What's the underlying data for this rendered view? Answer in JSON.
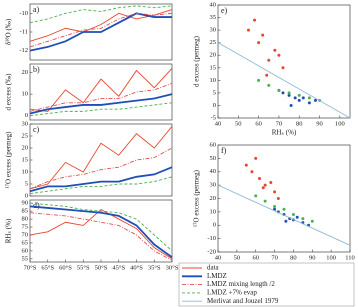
{
  "chart_data": [
    {
      "type": "line",
      "title": "a)",
      "ylabel": "δ¹⁸O (‰)",
      "x": [
        -70,
        -65,
        -60,
        -55,
        -50,
        -45,
        -40,
        -35,
        -30
      ],
      "xlim": [
        -70,
        -30
      ],
      "ylim": [
        -12.5,
        -9.5
      ],
      "yticks": [
        -12,
        -11,
        -10
      ],
      "series": [
        {
          "name": "data",
          "color": "#e8452c",
          "style": "solid",
          "values": [
            -11.5,
            -11.2,
            -10.8,
            -11,
            -10.6,
            -10,
            -10.3,
            -10.1,
            -9.8
          ]
        },
        {
          "name": "LMDZ",
          "color": "#1f4fb4",
          "style": "thick",
          "values": [
            -12,
            -11.8,
            -11.5,
            -11,
            -11,
            -10.5,
            -10,
            -10.2,
            -10.2
          ]
        },
        {
          "name": "LMDZ mixing length /2",
          "color": "#e05050",
          "style": "dashdot",
          "values": [
            -11.8,
            -11.5,
            -11.2,
            -10.9,
            -10.8,
            -10.3,
            -10,
            -10.1,
            -10
          ]
        },
        {
          "name": "LMDZ +7% evap",
          "color": "#4caf50",
          "style": "dashed",
          "values": [
            -10.5,
            -10.3,
            -10,
            -9.8,
            -9.9,
            -9.7,
            -9.6,
            -9.7,
            -9.6
          ]
        }
      ]
    },
    {
      "type": "line",
      "title": "b)",
      "ylabel": "d excess (‰)",
      "x": [
        -70,
        -65,
        -60,
        -55,
        -50,
        -45,
        -40,
        -35,
        -30
      ],
      "xlim": [
        -70,
        -30
      ],
      "ylim": [
        -2,
        24
      ],
      "yticks": [
        0,
        10,
        20
      ],
      "series": [
        {
          "name": "data",
          "color": "#e8452c",
          "style": "solid",
          "values": [
            3,
            2,
            12,
            6,
            17,
            9,
            21,
            13,
            22
          ]
        },
        {
          "name": "LMDZ",
          "color": "#1f4fb4",
          "style": "thick",
          "values": [
            1,
            3,
            4,
            5,
            5,
            6,
            7,
            8,
            10
          ]
        },
        {
          "name": "LMDZ mixing length /2",
          "color": "#e05050",
          "style": "dashdot",
          "values": [
            2,
            4,
            6,
            6,
            8,
            8,
            11,
            12,
            15
          ]
        },
        {
          "name": "LMDZ +7% evap",
          "color": "#4caf50",
          "style": "dashed",
          "values": [
            0,
            1,
            2,
            2,
            3,
            3,
            4,
            5,
            6
          ]
        }
      ]
    },
    {
      "type": "line",
      "title": "c)",
      "ylabel": "¹⁷O excess (permeg)",
      "x": [
        -70,
        -65,
        -60,
        -55,
        -50,
        -45,
        -40,
        -35,
        -30
      ],
      "xlim": [
        -70,
        -30
      ],
      "ylim": [
        0,
        30
      ],
      "yticks": [
        0,
        5,
        10,
        15,
        20,
        25,
        30
      ],
      "series": [
        {
          "name": "data",
          "color": "#e8452c",
          "style": "solid",
          "values": [
            3,
            5,
            14,
            10,
            22,
            17,
            26,
            20,
            29
          ]
        },
        {
          "name": "LMDZ",
          "color": "#1f4fb4",
          "style": "thick",
          "values": [
            2,
            4,
            4,
            5,
            6,
            6,
            8,
            9,
            12
          ]
        },
        {
          "name": "LMDZ mixing length /2",
          "color": "#e05050",
          "style": "dashdot",
          "values": [
            3,
            6,
            8,
            9,
            11,
            12,
            15,
            16,
            20
          ]
        },
        {
          "name": "LMDZ +7% evap",
          "color": "#4caf50",
          "style": "dashed",
          "values": [
            1,
            2,
            3,
            4,
            4,
            5,
            5,
            6,
            8
          ]
        }
      ]
    },
    {
      "type": "line",
      "title": "d)",
      "ylabel": "RHₛ (%)",
      "x": [
        -70,
        -65,
        -60,
        -55,
        -50,
        -45,
        -40,
        -35,
        -30
      ],
      "xlim": [
        -70,
        -30
      ],
      "xticks": [
        {
          "value": -70,
          "label": "70°S"
        },
        {
          "value": -65,
          "label": "65°S"
        },
        {
          "value": -60,
          "label": "60°S"
        },
        {
          "value": -55,
          "label": "55°S"
        },
        {
          "value": -50,
          "label": "50°S"
        },
        {
          "value": -45,
          "label": "45°S"
        },
        {
          "value": -40,
          "label": "40°S"
        },
        {
          "value": -35,
          "label": "35°S"
        },
        {
          "value": -30,
          "label": "30°S"
        }
      ],
      "ylim": [
        53,
        92
      ],
      "yticks": [
        55,
        60,
        65,
        70,
        75,
        80,
        85,
        90
      ],
      "series": [
        {
          "name": "data",
          "color": "#e8452c",
          "style": "solid",
          "values": [
            70,
            72,
            78,
            76,
            86,
            80,
            74,
            62,
            55
          ]
        },
        {
          "name": "LMDZ",
          "color": "#1f4fb4",
          "style": "thick",
          "values": [
            88,
            87,
            86,
            85,
            84,
            82,
            76,
            64,
            56
          ]
        },
        {
          "name": "LMDZ mixing length /2",
          "color": "#e05050",
          "style": "dashdot",
          "values": [
            84,
            83,
            82,
            80,
            78,
            76,
            70,
            60,
            54
          ]
        },
        {
          "name": "LMDZ +7% evap",
          "color": "#4caf50",
          "style": "dashed",
          "values": [
            90,
            89,
            88,
            86,
            85,
            84,
            80,
            70,
            60
          ]
        }
      ]
    },
    {
      "type": "scatter",
      "title": "e)",
      "xlabel": "RHₛ (%)",
      "ylabel": "d excess (permeg)",
      "xlim": [
        40,
        105
      ],
      "xticks": [
        40,
        50,
        60,
        70,
        80,
        90,
        100
      ],
      "ylim": [
        -5,
        40
      ],
      "yticks": [
        -5,
        0,
        5,
        10,
        15,
        20,
        25,
        30,
        35,
        40
      ],
      "series": [
        {
          "name": "LMDZ",
          "color": "#1f4fb4",
          "style": "points",
          "x": [
            72,
            75,
            78,
            80,
            82,
            85,
            88,
            70,
            76
          ],
          "values": [
            5,
            4,
            3,
            2,
            3,
            1,
            2,
            6,
            0
          ]
        },
        {
          "name": "LMDZ mixing length /2",
          "color": "#e8452c",
          "style": "points",
          "x": [
            55,
            60,
            62,
            65,
            68,
            70,
            72,
            58,
            64
          ],
          "values": [
            30,
            25,
            28,
            18,
            22,
            20,
            15,
            34,
            12
          ]
        },
        {
          "name": "LMDZ +7% evap",
          "color": "#4caf50",
          "style": "points",
          "x": [
            60,
            65,
            70,
            75,
            80,
            85,
            90
          ],
          "values": [
            10,
            8,
            6,
            5,
            4,
            3,
            2
          ]
        },
        {
          "name": "Merlivat and Jouzel 1979",
          "color": "#8fb8d8",
          "style": "solid",
          "x": [
            40,
            105
          ],
          "values": [
            25,
            -5
          ]
        }
      ]
    },
    {
      "type": "scatter",
      "title": "f)",
      "xlabel": "RHₛ (%)",
      "ylabel": "¹⁷O excess (permeg)",
      "xlim": [
        40,
        110
      ],
      "xticks": [
        40,
        50,
        60,
        70,
        80,
        90,
        100,
        110
      ],
      "ylim": [
        -20,
        60
      ],
      "yticks": [
        -20,
        -10,
        0,
        10,
        20,
        30,
        40,
        50,
        60
      ],
      "series": [
        {
          "name": "LMDZ",
          "color": "#1f4fb4",
          "style": "points",
          "x": [
            72,
            75,
            78,
            80,
            82,
            85,
            88,
            70,
            76
          ],
          "values": [
            10,
            8,
            5,
            4,
            6,
            2,
            0,
            12,
            3
          ]
        },
        {
          "name": "LMDZ mixing length /2",
          "color": "#e8452c",
          "style": "points",
          "x": [
            55,
            58,
            62,
            65,
            68,
            70,
            72,
            60,
            64
          ],
          "values": [
            45,
            40,
            35,
            30,
            32,
            25,
            20,
            50,
            28
          ]
        },
        {
          "name": "LMDZ +7% evap",
          "color": "#4caf50",
          "style": "points",
          "x": [
            60,
            65,
            70,
            75,
            80,
            85,
            90
          ],
          "values": [
            22,
            18,
            14,
            12,
            8,
            5,
            3
          ]
        },
        {
          "name": "Merlivat and Jouzel 1979",
          "color": "#8fb8d8",
          "style": "solid",
          "x": [
            40,
            110
          ],
          "values": [
            30,
            -15
          ]
        }
      ]
    }
  ]
}
